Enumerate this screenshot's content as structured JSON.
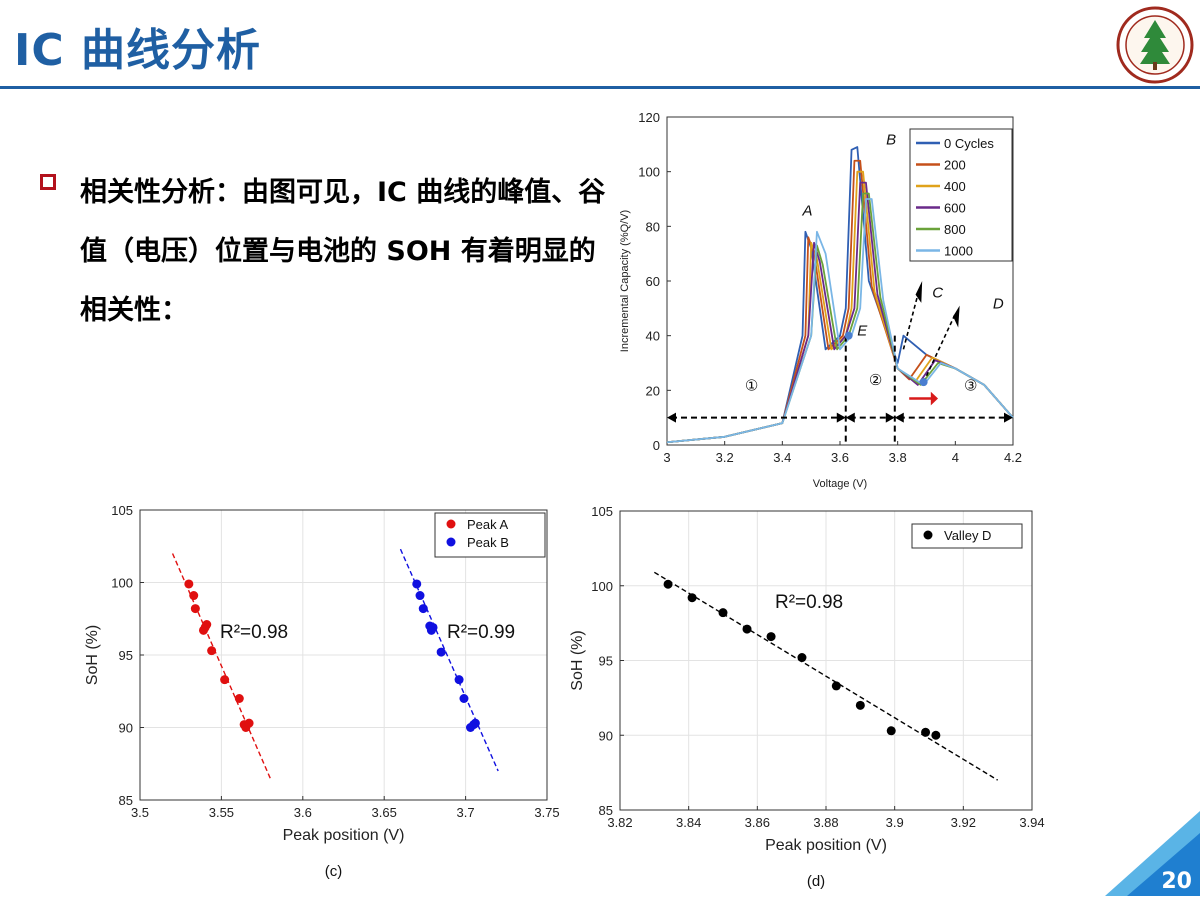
{
  "slide": {
    "title": "IC 曲线分析",
    "bullet": "相关性分析：由图可见，IC 曲线的峰值、谷值（电压）位置与电池的 SOH 有着明显的相关性：",
    "page_number": "20",
    "accent": "#1f5fa3",
    "bullet_color": "#b3121d"
  },
  "chart_data": [
    {
      "type": "line",
      "xlabel": "Voltage (V)",
      "ylabel": "Incremental Capacity (%Q/V)",
      "xlim": [
        3,
        4.2
      ],
      "ylim": [
        0,
        120
      ],
      "x_ticks": [
        "3",
        "3.2",
        "3.4",
        "3.6",
        "3.8",
        "4",
        "4.2"
      ],
      "y_ticks": [
        "0",
        "20",
        "40",
        "60",
        "80",
        "100",
        "120"
      ],
      "legend_position": "top-right",
      "annotations": [
        "A",
        "B",
        "C",
        "D",
        "E",
        "①",
        "②",
        "③"
      ],
      "series": [
        {
          "name": "0 Cycles",
          "color": "#2f5fb3",
          "shift": 0.0,
          "x": [
            3.0,
            3.2,
            3.4,
            3.47,
            3.48,
            3.5,
            3.55,
            3.6,
            3.62,
            3.64,
            3.66,
            3.7,
            3.8,
            3.82,
            3.9,
            4.0,
            4.1,
            4.2
          ],
          "y": [
            1,
            3,
            8,
            40,
            78,
            72,
            35,
            40,
            50,
            108,
            109,
            60,
            30,
            40,
            33,
            28,
            22,
            10
          ]
        },
        {
          "name": "200",
          "color": "#c5501a",
          "shift": 0.01,
          "x": [
            3.0,
            3.2,
            3.4,
            3.48,
            3.49,
            3.51,
            3.56,
            3.61,
            3.63,
            3.65,
            3.67,
            3.71,
            3.8,
            3.84,
            3.9,
            4.0,
            4.1,
            4.2
          ],
          "y": [
            1,
            3,
            8,
            40,
            76,
            70,
            35,
            40,
            50,
            104,
            104,
            58,
            28,
            24,
            33,
            28,
            22,
            10
          ]
        },
        {
          "name": "400",
          "color": "#e0a21a",
          "shift": 0.02,
          "x": [
            3.0,
            3.2,
            3.4,
            3.49,
            3.5,
            3.52,
            3.57,
            3.62,
            3.64,
            3.66,
            3.68,
            3.72,
            3.8,
            3.86,
            3.92,
            4.0,
            4.1,
            4.2
          ],
          "y": [
            1,
            3,
            8,
            40,
            74,
            68,
            35,
            40,
            50,
            100,
            100,
            56,
            28,
            23,
            32,
            28,
            22,
            10
          ]
        },
        {
          "name": "600",
          "color": "#6a2a8a",
          "shift": 0.03,
          "x": [
            3.0,
            3.2,
            3.4,
            3.49,
            3.51,
            3.53,
            3.58,
            3.62,
            3.65,
            3.67,
            3.69,
            3.73,
            3.8,
            3.87,
            3.93,
            4.0,
            4.1,
            4.2
          ],
          "y": [
            1,
            3,
            8,
            40,
            74,
            67,
            35,
            40,
            50,
            96,
            96,
            55,
            28,
            22,
            31,
            28,
            22,
            10
          ]
        },
        {
          "name": "800",
          "color": "#6aa23a",
          "shift": 0.04,
          "x": [
            3.0,
            3.2,
            3.4,
            3.5,
            3.52,
            3.54,
            3.59,
            3.63,
            3.66,
            3.68,
            3.7,
            3.74,
            3.8,
            3.88,
            3.94,
            4.0,
            4.1,
            4.2
          ],
          "y": [
            1,
            3,
            8,
            40,
            73,
            66,
            35,
            40,
            50,
            92,
            92,
            54,
            28,
            22,
            30,
            28,
            22,
            10
          ]
        },
        {
          "name": "1000",
          "color": "#7ab6e6",
          "shift": 0.05,
          "x": [
            3.0,
            3.2,
            3.4,
            3.5,
            3.52,
            3.55,
            3.6,
            3.64,
            3.67,
            3.69,
            3.71,
            3.75,
            3.8,
            3.89,
            3.95,
            4.0,
            4.1,
            4.2
          ],
          "y": [
            1,
            3,
            8,
            40,
            78,
            70,
            35,
            40,
            50,
            90,
            90,
            53,
            28,
            22,
            30,
            28,
            22,
            10
          ]
        }
      ]
    },
    {
      "type": "scatter",
      "caption": "(c)",
      "xlabel": "Peak position  (V)",
      "ylabel": "SoH (%)",
      "xlim": [
        3.5,
        3.75
      ],
      "ylim": [
        85,
        105
      ],
      "x_ticks": [
        "3.5",
        "3.55",
        "3.6",
        "3.65",
        "3.7",
        "3.75"
      ],
      "y_ticks": [
        "85",
        "90",
        "95",
        "100",
        "105"
      ],
      "legend_position": "top-right",
      "annotations": [
        "R²=0.98",
        "R²=0.99"
      ],
      "series": [
        {
          "name": "Peak A",
          "color": "#e01010",
          "x": [
            3.53,
            3.533,
            3.534,
            3.539,
            3.54,
            3.541,
            3.544,
            3.552,
            3.561,
            3.564,
            3.565,
            3.567
          ],
          "y": [
            99.9,
            99.1,
            98.2,
            96.7,
            96.9,
            97.1,
            95.3,
            93.3,
            92.0,
            90.2,
            90.0,
            90.3
          ],
          "fit": [
            [
              3.52,
              102
            ],
            [
              3.58,
              86.5
            ]
          ]
        },
        {
          "name": "Peak B",
          "color": "#1010e0",
          "x": [
            3.67,
            3.672,
            3.674,
            3.678,
            3.679,
            3.68,
            3.685,
            3.696,
            3.699,
            3.703,
            3.705,
            3.706
          ],
          "y": [
            99.9,
            99.1,
            98.2,
            97.0,
            96.7,
            96.9,
            95.2,
            93.3,
            92.0,
            90.0,
            90.2,
            90.3
          ],
          "fit": [
            [
              3.66,
              102.3
            ],
            [
              3.72,
              87
            ]
          ]
        }
      ]
    },
    {
      "type": "scatter",
      "caption": "(d)",
      "xlabel": "Peak position  (V)",
      "ylabel": "SoH (%)",
      "xlim": [
        3.82,
        3.94
      ],
      "ylim": [
        85,
        105
      ],
      "x_ticks": [
        "3.82",
        "3.84",
        "3.86",
        "3.88",
        "3.9",
        "3.92",
        "3.94"
      ],
      "y_ticks": [
        "85",
        "90",
        "95",
        "100",
        "105"
      ],
      "legend_position": "top-right",
      "annotations": [
        "R²=0.98"
      ],
      "series": [
        {
          "name": "Valley D",
          "color": "#000000",
          "x": [
            3.834,
            3.841,
            3.85,
            3.857,
            3.864,
            3.873,
            3.883,
            3.89,
            3.899,
            3.909,
            3.912
          ],
          "y": [
            100.1,
            99.2,
            98.2,
            97.1,
            96.6,
            95.2,
            93.3,
            92.0,
            90.3,
            90.2,
            90.0
          ],
          "fit": [
            [
              3.83,
              100.9
            ],
            [
              3.93,
              87.0
            ]
          ]
        }
      ]
    }
  ]
}
